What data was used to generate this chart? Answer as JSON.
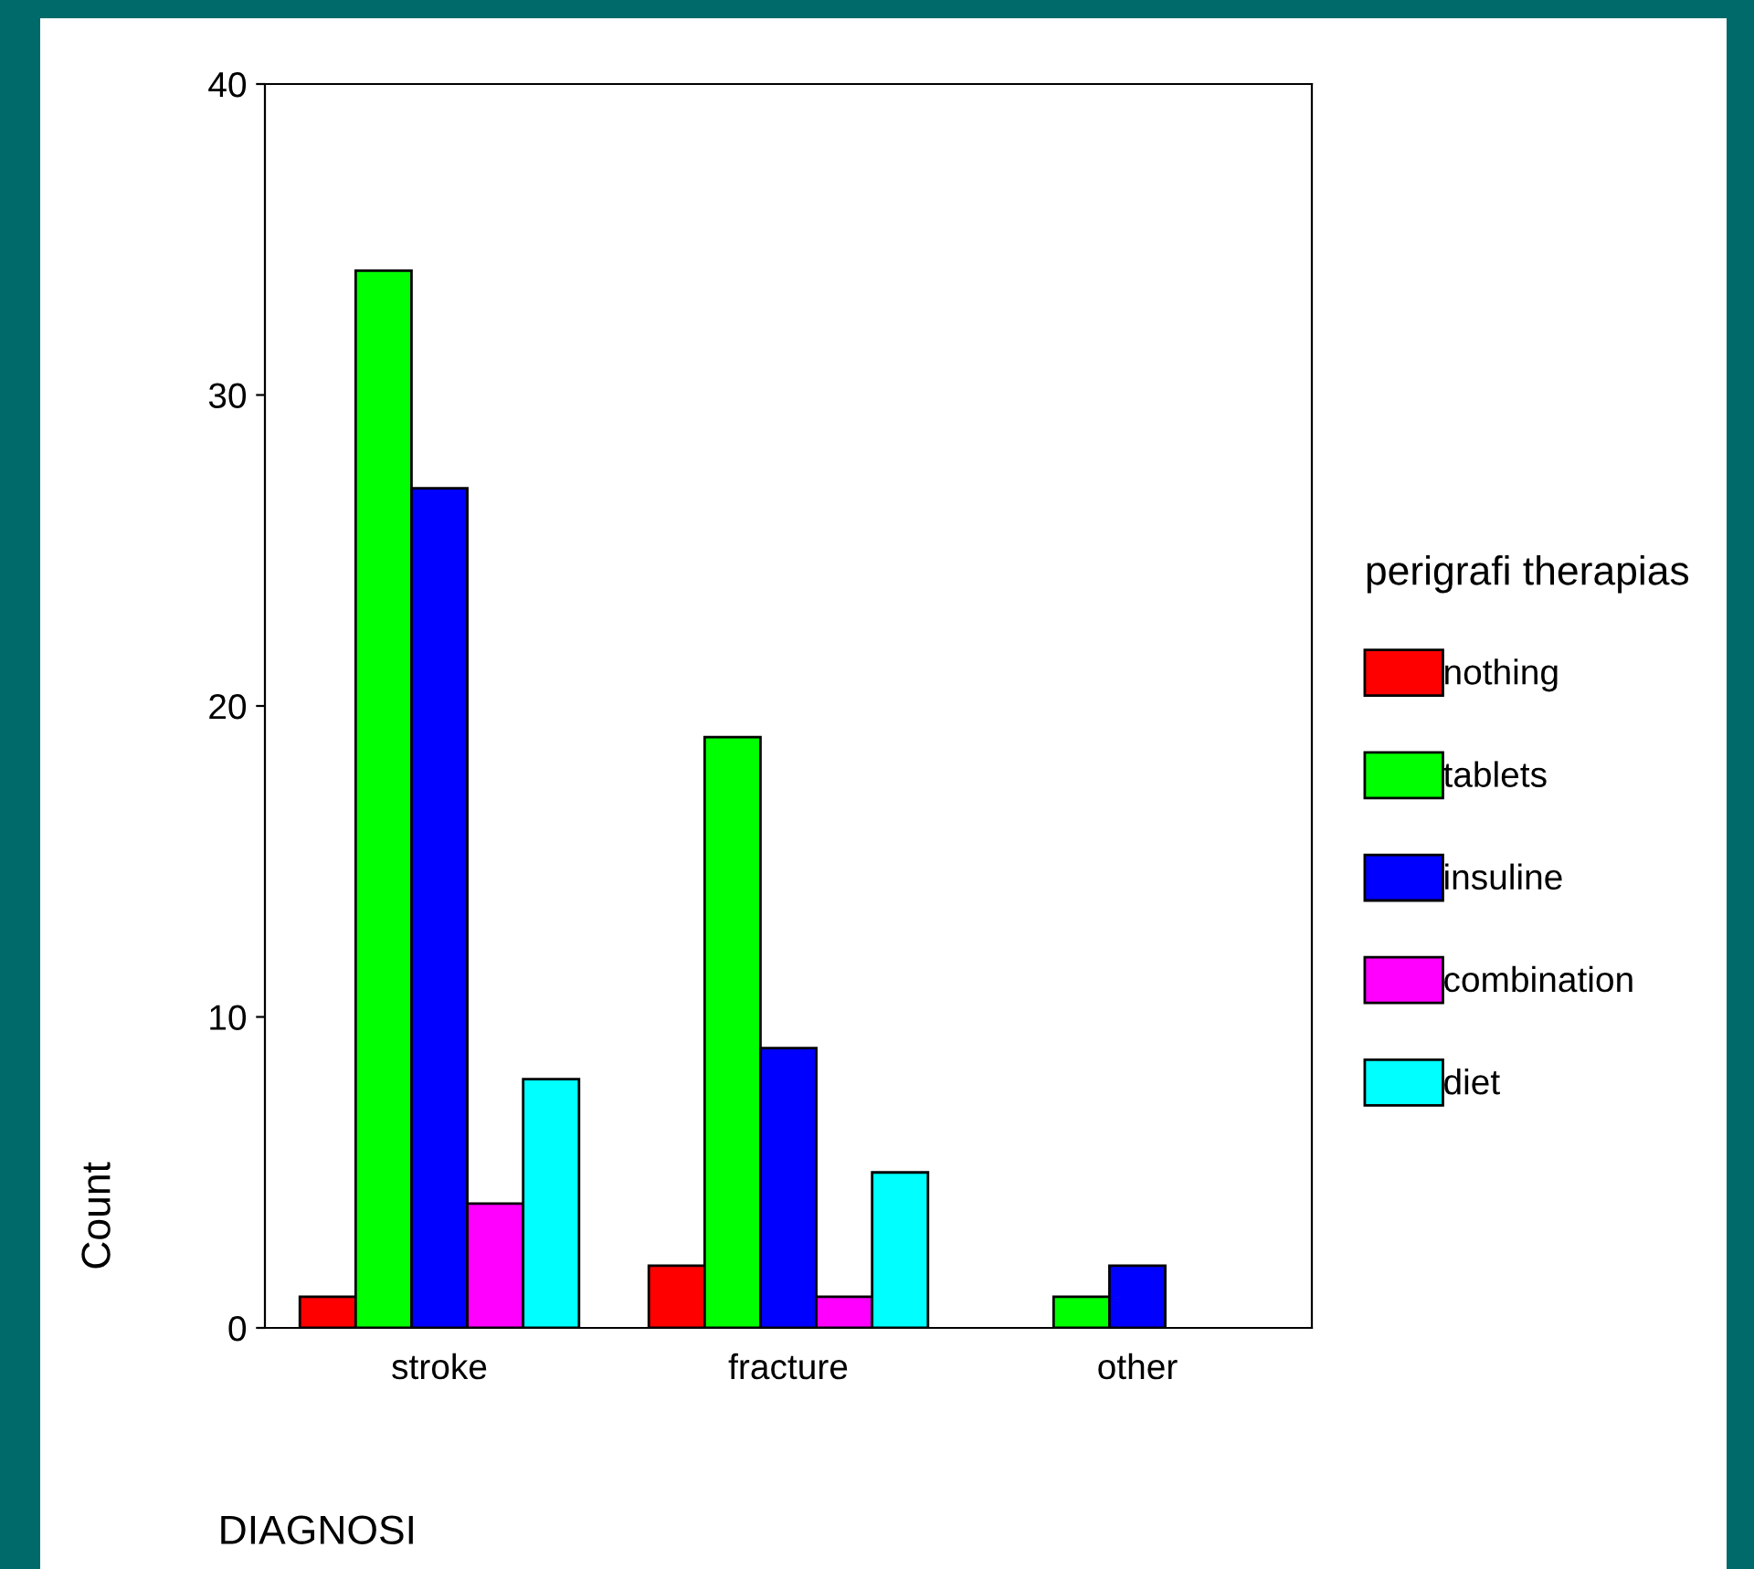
{
  "chart_data": {
    "type": "bar",
    "xlabel": "DIAGNOSI",
    "ylabel": "Count",
    "legend_title": "perigrafi therapias",
    "categories": [
      "stroke",
      "fracture",
      "other"
    ],
    "series": [
      {
        "name": "nothing",
        "color": "#ff0000",
        "values": [
          1,
          2,
          null
        ]
      },
      {
        "name": "tablets",
        "color": "#00ff00",
        "values": [
          34,
          19,
          1
        ]
      },
      {
        "name": "insuline",
        "color": "#0000ff",
        "values": [
          27,
          9,
          2
        ]
      },
      {
        "name": "combination",
        "color": "#ff00ff",
        "values": [
          4,
          1,
          null
        ]
      },
      {
        "name": "diet",
        "color": "#00ffff",
        "values": [
          8,
          5,
          null
        ]
      }
    ],
    "ylim": [
      0,
      40
    ],
    "yticks": [
      0,
      10,
      20,
      30,
      40
    ],
    "grid": false,
    "legend": "right"
  }
}
